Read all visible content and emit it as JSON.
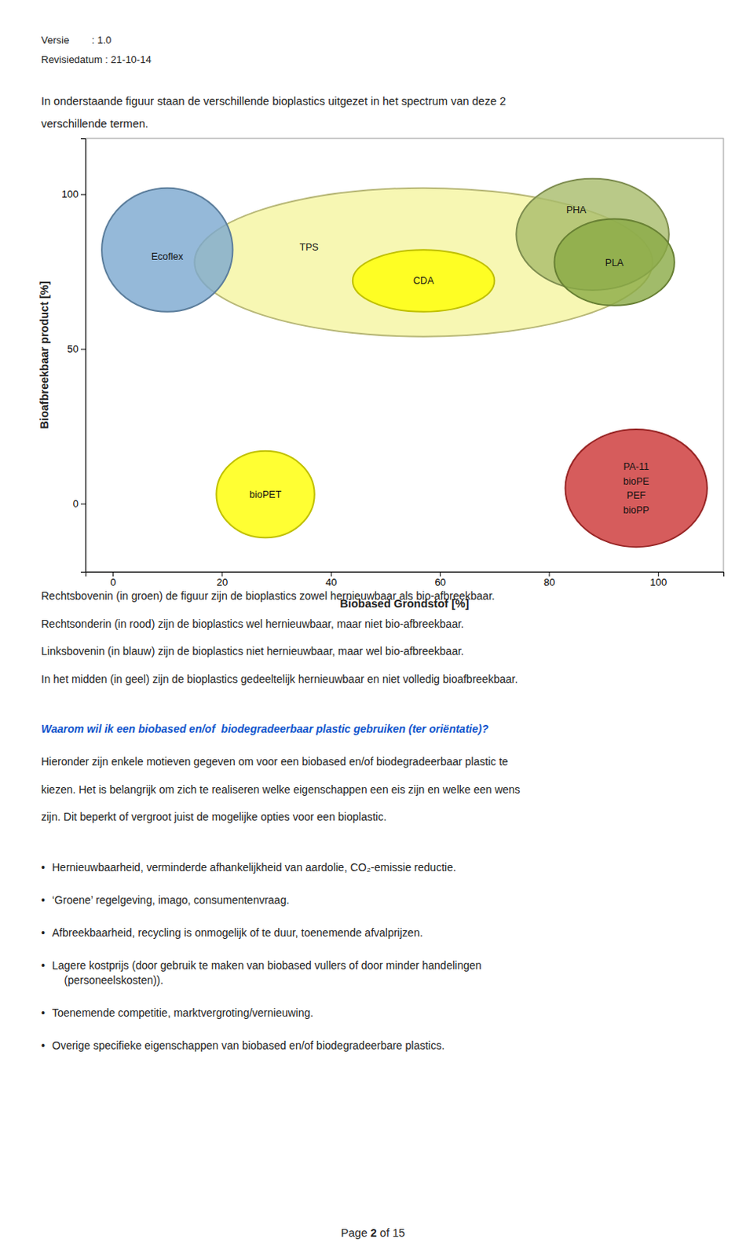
{
  "version_text": "Versie        : 1.0",
  "revision_text": "Revisiedatum : 21-10-14",
  "intro_lines": [
    "In onderstaande figuur staan de verschillende bioplastics uitgezet in het spectrum van deze 2",
    "verschillende termen."
  ],
  "chart_data": {
    "type": "ellipse",
    "xlabel": "Biobased Grondstof [%]",
    "ylabel": "Bioafbreekbaar product [%]",
    "xlim": [
      -5,
      112
    ],
    "ylim": [
      -22,
      118
    ],
    "xticks": [
      0,
      20,
      40,
      60,
      80,
      100
    ],
    "yticks": [
      0,
      50,
      100
    ],
    "grid": false,
    "series": [
      {
        "name": "Ecoflex",
        "color": "#7aa7d0",
        "cx": 10,
        "cy": 82,
        "rx": 12,
        "ry": 20,
        "label_x": 10,
        "label_y": 80
      },
      {
        "name": "TPS",
        "color": "#f5f5a0",
        "cx": 57,
        "cy": 78,
        "rx": 42,
        "ry": 24,
        "label_x": 36,
        "label_y": 83
      },
      {
        "name": "CDA",
        "color": "#ffff00",
        "cx": 57,
        "cy": 72,
        "rx": 13,
        "ry": 10,
        "label_x": 57,
        "label_y": 72
      },
      {
        "name": "PHA",
        "color": "#a8bb6a",
        "cx": 88,
        "cy": 87,
        "rx": 14,
        "ry": 18,
        "label_x": 85,
        "label_y": 95
      },
      {
        "name": "PLA",
        "color": "#8aaa45",
        "cx": 92,
        "cy": 78,
        "rx": 11,
        "ry": 14,
        "label_x": 92,
        "label_y": 78
      },
      {
        "name": "bioPET",
        "color": "#ffff00",
        "cx": 28,
        "cy": 3,
        "rx": 9,
        "ry": 14,
        "label_x": 28,
        "label_y": 3
      },
      {
        "name": "PA-11\nbioPE\nPEF\nbioPP",
        "color": "#cc3333",
        "cx": 96,
        "cy": 5,
        "rx": 13,
        "ry": 19,
        "label_x": 96,
        "label_y": 5
      }
    ]
  },
  "description_lines": [
    "Rechtsbovenin (in groen) de figuur zijn de bioplastics zowel hernieuwbaar als bio-afbreekbaar.",
    "Rechtsonderin (in rood) zijn de bioplastics wel hernieuwbaar, maar niet bio-afbreekbaar.",
    "Linksbovenin (in blauw) zijn de bioplastics niet hernieuwbaar, maar wel bio-afbreekbaar.",
    "In het midden (in geel) zijn de bioplastics gedeeltelijk hernieuwbaar en niet volledig bioafbreekbaar."
  ],
  "blue_heading": "Waarom wil ik een biobased en/of  biodegradeerbaar plastic gebruiken (ter oriëntatie)?",
  "blue_heading_color": "#1155cc",
  "body_text_lines": [
    "Hieronder zijn enkele motieven gegeven om voor een biobased en/of biodegradeerbaar plastic te",
    "kiezen. Het is belangrijk om zich te realiseren welke eigenschappen een eis zijn en welke een wens",
    "zijn. Dit beperkt of vergroot juist de mogelijke opties voor een bioplastic."
  ],
  "bullet": "•",
  "bullet_points": [
    "Hernieuwbaarheid, verminderde afhankelijkheid van aardolie, CO₂-emissie reductie.",
    "‘Groene’ regelgeving, imago, consumentenvraag.",
    "Afbreekbaarheid, recycling is onmogelijk of te duur, toenemende afvalprijzen.",
    "Lagere kostprijs (door gebruik te maken van biobased vullers of door minder handelingen\n    (personeelskosten)).",
    "Toenemende competitie, marktvergroting/vernieuwing.",
    "Overige specifieke eigenschappen van biobased en/of biodegradeerbare plastics."
  ],
  "page_footer": "Page ",
  "page_num": "2",
  "page_of": " of 15"
}
